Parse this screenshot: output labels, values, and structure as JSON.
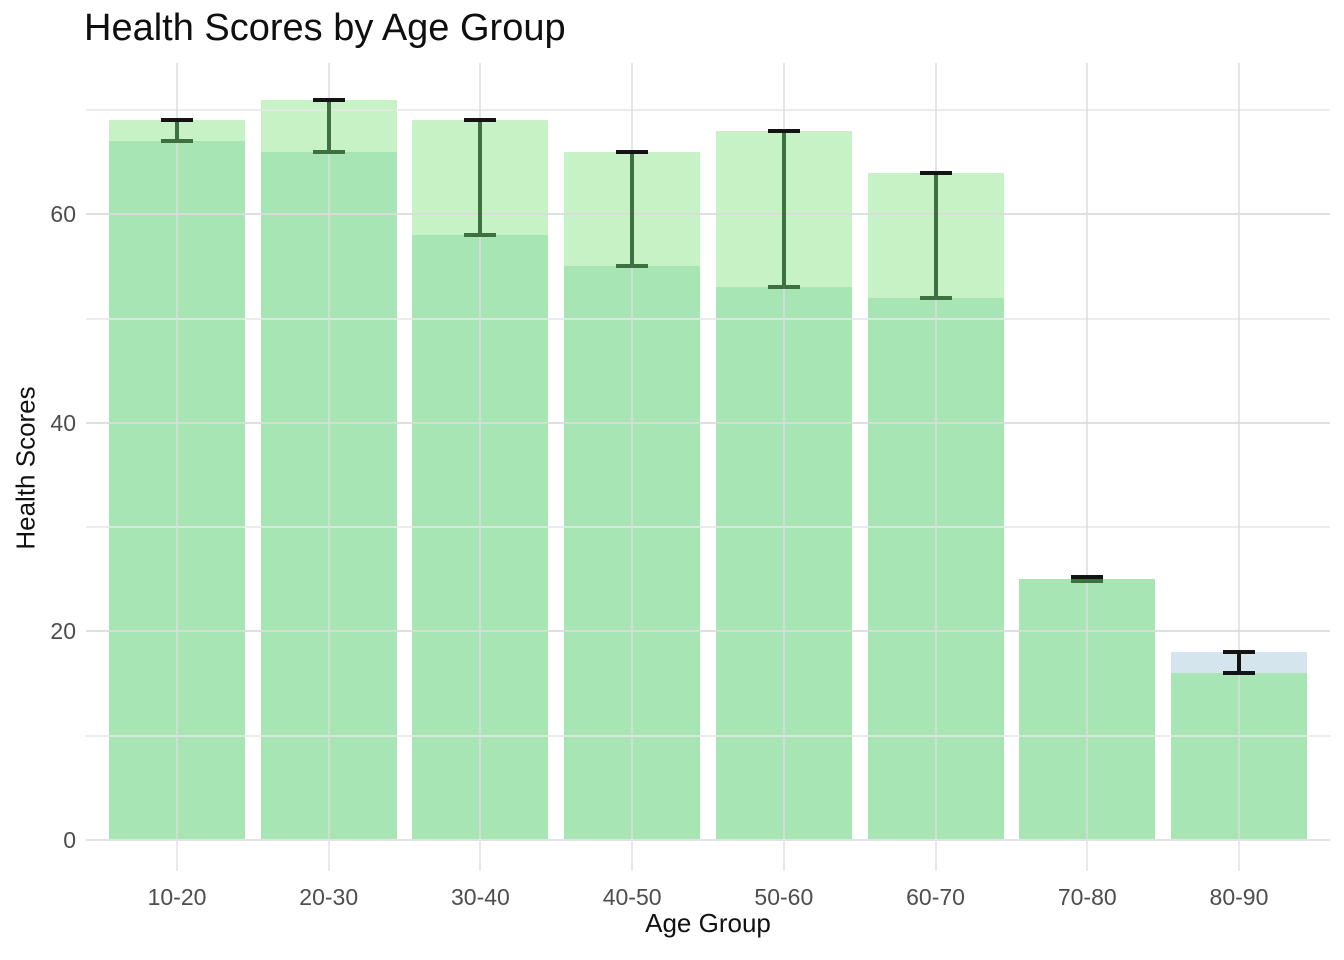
{
  "chart_data": {
    "type": "bar",
    "title": "Health Scores by Age Group",
    "xlabel": "Age Group",
    "ylabel": "Health Scores",
    "categories": [
      "10-20",
      "20-30",
      "30-40",
      "40-50",
      "50-60",
      "60-70",
      "70-80",
      "80-90"
    ],
    "series": [
      {
        "name": "upper-range-bar",
        "values": [
          69,
          71,
          69,
          66,
          68,
          64,
          25,
          18
        ],
        "bar_colors": [
          "#c6f2c5",
          "#c6f2c5",
          "#c6f2c5",
          "#c6f2c5",
          "#c6f2c5",
          "#c6f2c5",
          "#c6f2c5",
          "#d5e5ee"
        ]
      },
      {
        "name": "lower-range-bar",
        "values": [
          67,
          66,
          58,
          55,
          53,
          52,
          25,
          16
        ],
        "bar_colors": [
          "#a7e6b4",
          "#a7e6b4",
          "#a7e6b4",
          "#a7e6b4",
          "#a7e6b4",
          "#a7e6b4",
          "#a7e6b4",
          "#a7e6b4"
        ]
      }
    ],
    "error_bars": {
      "low": [
        67,
        66,
        58,
        55,
        53,
        52,
        24.8,
        16
      ],
      "high": [
        69,
        71,
        69,
        66,
        68,
        64,
        25.2,
        18
      ],
      "stem_colors": [
        "#3d713f",
        "#3d713f",
        "#3d713f",
        "#3d713f",
        "#3d713f",
        "#3d713f",
        "#3d713f",
        "#141414"
      ],
      "cap_top_colors": [
        "#141414",
        "#141414",
        "#141414",
        "#141414",
        "#141414",
        "#141414",
        "#141414",
        "#141414"
      ],
      "cap_bottom_colors": [
        "#3d713f",
        "#3d713f",
        "#3d713f",
        "#3d713f",
        "#3d713f",
        "#3d713f",
        "#3d713f",
        "#141414"
      ]
    },
    "ylim": [
      0,
      74.5
    ],
    "yticks": [
      0,
      20,
      40,
      60
    ],
    "ytick_labels": [
      "0",
      "20",
      "40",
      "60"
    ],
    "yticks_minor": [
      10,
      30,
      50,
      70
    ],
    "grid": {
      "horizontal_major": true,
      "horizontal_minor": true,
      "vertical_at_categories": true,
      "drawn_over_bars": true
    },
    "legend": "none"
  },
  "colors": {
    "background": "#ffffff",
    "upper_bar_green": "#c6f2c5",
    "upper_bar_blue": "#d5e5ee",
    "lower_bar_green": "#a7e6b4",
    "errorbar_green": "#3d713f",
    "errorbar_black": "#141414",
    "grid_major": "#dcdcdc",
    "grid_minor": "#e7e7e7",
    "axis_line": "#e3e3e3",
    "tick_mark": "#e9e9e9",
    "tick_label_text": "#4d4d4d",
    "title_text": "#0f0f0f",
    "axis_title_text": "#111111"
  }
}
